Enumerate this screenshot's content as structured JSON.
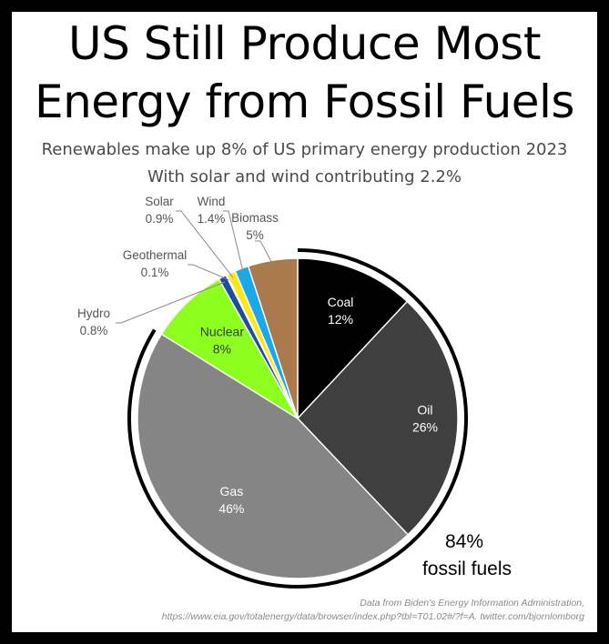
{
  "title_lines": [
    "US Still Produce Most",
    "Energy from Fossil Fuels"
  ],
  "subtitle_lines": [
    "Renewables make up 8% of US primary energy production 2023",
    "With solar and wind contributing 2.2%"
  ],
  "source_lines": [
    "Data from Biden's Energy Information Administration,",
    "https://www.eia.gov/totalenergy/data/browser/index.php?tbl=T01.02#/?f=A. twitter.com/bjornlomborg"
  ],
  "chart_data": {
    "type": "pie",
    "start_angle_deg": 0,
    "direction": "clockwise",
    "slices": [
      {
        "label": "Coal",
        "value": 12,
        "value_label": "12%",
        "color": "#000000",
        "text_color": "#ffffff"
      },
      {
        "label": "Oil",
        "value": 26,
        "value_label": "26%",
        "color": "#3f3f3f",
        "text_color": "#ffffff"
      },
      {
        "label": "Gas",
        "value": 46,
        "value_label": "46%",
        "color": "#858585",
        "text_color": "#ffffff"
      },
      {
        "label": "Nuclear",
        "value": 8,
        "value_label": "8%",
        "color": "#8cff1f",
        "text_color": "#3a3a3a"
      },
      {
        "label": "Hydro",
        "value": 0.8,
        "value_label": "0.8%",
        "color": "#1d4e9e",
        "text_color": "#555555"
      },
      {
        "label": "Geothermal",
        "value": 0.1,
        "value_label": "0.1%",
        "color": "#111111",
        "text_color": "#555555"
      },
      {
        "label": "Solar",
        "value": 0.9,
        "value_label": "0.9%",
        "color": "#ffe81a",
        "text_color": "#555555"
      },
      {
        "label": "Wind",
        "value": 1.4,
        "value_label": "1.4%",
        "color": "#19a8e8",
        "text_color": "#555555"
      },
      {
        "label": "Biomass",
        "value": 5,
        "value_label": "5%",
        "color": "#a87a4c",
        "text_color": "#555555"
      }
    ],
    "fossil_annotation": {
      "value": "84%",
      "text": "fossil fuels",
      "covers": [
        "Coal",
        "Oil",
        "Gas"
      ]
    }
  }
}
